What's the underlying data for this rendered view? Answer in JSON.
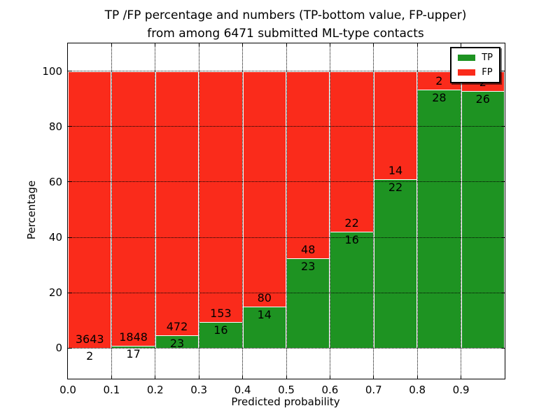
{
  "title": {
    "line1": "TP /FP percentage and numbers (TP-bottom value, FP-upper)",
    "line2": "from among 6471 submitted ML-type contacts"
  },
  "axes": {
    "xlabel": "Predicted probability",
    "ylabel": "Percentage",
    "x_tick_labels": [
      "0.0",
      "0.1",
      "0.2",
      "0.3",
      "0.4",
      "0.5",
      "0.6",
      "0.7",
      "0.8",
      "0.9"
    ],
    "y_tick_labels": [
      "0",
      "20",
      "40",
      "60",
      "80",
      "100"
    ]
  },
  "legend": {
    "items": [
      {
        "label": "TP",
        "color": "#1E9322"
      },
      {
        "label": "FP",
        "color": "#FA2B1B"
      }
    ]
  },
  "chart_data": {
    "type": "bar",
    "stacked": true,
    "normalized_per_bin_to_100_percent": true,
    "title": "TP /FP percentage and numbers (TP-bottom value, FP-upper) from among 6471 submitted ML-type contacts",
    "xlabel": "Predicted probability",
    "ylabel": "Percentage",
    "bins": [
      "0.0-0.1",
      "0.1-0.2",
      "0.2-0.3",
      "0.3-0.4",
      "0.4-0.5",
      "0.5-0.6",
      "0.6-0.7",
      "0.7-0.8",
      "0.8-0.9",
      "0.9-1.0"
    ],
    "x_ticks": [
      0.0,
      0.1,
      0.2,
      0.3,
      0.4,
      0.5,
      0.6,
      0.7,
      0.8,
      0.9
    ],
    "y_ticks": [
      0,
      20,
      40,
      60,
      80,
      100
    ],
    "xlim": [
      0.0,
      1.0
    ],
    "ylim": [
      -11,
      110
    ],
    "total_contacts": 6471,
    "series": [
      {
        "name": "TP",
        "color": "#1E9322",
        "counts": [
          2,
          17,
          23,
          16,
          14,
          23,
          16,
          22,
          28,
          26
        ]
      },
      {
        "name": "FP",
        "color": "#FA2B1B",
        "counts": [
          3643,
          1848,
          472,
          153,
          80,
          48,
          22,
          14,
          2,
          2
        ]
      }
    ],
    "tp_percent_per_bin": [
      0.05,
      0.91,
      4.65,
      9.47,
      14.89,
      32.39,
      42.11,
      61.11,
      93.33,
      92.86
    ],
    "bar_label_rule": "TP count printed below green/red boundary, FP count printed above it",
    "legend_position": "upper right",
    "legend_shadow": true,
    "grid": "dotted, both axes",
    "tick_direction": "in, all four sides",
    "bar_edge_color": "#ffffff"
  }
}
